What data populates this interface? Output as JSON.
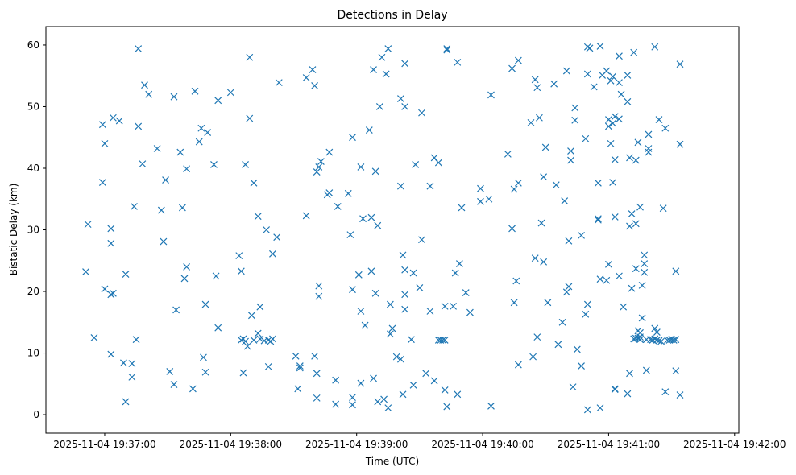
{
  "chart_data": {
    "type": "scatter",
    "title": "Detections in Delay",
    "xlabel": "Time (UTC)",
    "ylabel": "Bistatic Delay (km)",
    "marker": "x",
    "color": "#1f77b4",
    "x_unit": "seconds since 2025-11-04 19:37:00 UTC",
    "xlim": [
      -28,
      302
    ],
    "ylim": [
      -3,
      63
    ],
    "xticks": [
      {
        "value": 0,
        "label": "2025-11-04 19:37:00"
      },
      {
        "value": 60,
        "label": "2025-11-04 19:38:00"
      },
      {
        "value": 120,
        "label": "2025-11-04 19:39:00"
      },
      {
        "value": 180,
        "label": "2025-11-04 19:40:00"
      },
      {
        "value": 240,
        "label": "2025-11-04 19:41:00"
      },
      {
        "value": 300,
        "label": "2025-11-04 19:42:00"
      }
    ],
    "yticks": [
      {
        "value": 0,
        "label": "0"
      },
      {
        "value": 10,
        "label": "10"
      },
      {
        "value": 20,
        "label": "20"
      },
      {
        "value": 30,
        "label": "30"
      },
      {
        "value": 40,
        "label": "40"
      },
      {
        "value": 50,
        "label": "50"
      },
      {
        "value": 60,
        "label": "60"
      }
    ],
    "points": [
      [
        -9,
        23.2
      ],
      [
        -8,
        30.9
      ],
      [
        -5,
        12.5
      ],
      [
        -1,
        47.1
      ],
      [
        -1,
        37.7
      ],
      [
        0,
        44
      ],
      [
        0,
        20.4
      ],
      [
        3,
        19.5
      ],
      [
        3,
        30.2
      ],
      [
        3,
        27.8
      ],
      [
        3,
        9.8
      ],
      [
        4,
        19.7
      ],
      [
        4,
        48.2
      ],
      [
        7,
        47.7
      ],
      [
        9,
        8.4
      ],
      [
        10,
        2.1
      ],
      [
        10,
        22.8
      ],
      [
        13,
        8.3
      ],
      [
        13,
        6.1
      ],
      [
        14,
        33.8
      ],
      [
        15,
        12.2
      ],
      [
        16,
        46.8
      ],
      [
        16,
        59.4
      ],
      [
        18,
        40.7
      ],
      [
        19,
        53.5
      ],
      [
        21,
        52
      ],
      [
        25,
        43.2
      ],
      [
        27,
        33.2
      ],
      [
        28,
        28.1
      ],
      [
        29,
        38.1
      ],
      [
        31,
        7
      ],
      [
        33,
        51.6
      ],
      [
        33,
        4.9
      ],
      [
        34,
        17
      ],
      [
        36,
        42.6
      ],
      [
        37,
        33.6
      ],
      [
        38,
        22.1
      ],
      [
        39,
        39.9
      ],
      [
        39,
        24
      ],
      [
        42,
        4.2
      ],
      [
        43,
        52.5
      ],
      [
        45,
        44.3
      ],
      [
        46,
        46.5
      ],
      [
        47,
        9.3
      ],
      [
        48,
        6.9
      ],
      [
        48,
        17.9
      ],
      [
        49,
        45.8
      ],
      [
        52,
        40.6
      ],
      [
        53,
        22.5
      ],
      [
        54,
        51
      ],
      [
        54,
        14.1
      ],
      [
        60,
        52.3
      ],
      [
        64,
        25.8
      ],
      [
        65,
        12.1
      ],
      [
        65,
        23.3
      ],
      [
        66,
        12.3
      ],
      [
        66,
        6.8
      ],
      [
        67,
        40.6
      ],
      [
        67,
        11.9
      ],
      [
        68,
        11.1
      ],
      [
        69,
        58
      ],
      [
        69,
        48.1
      ],
      [
        70,
        16.1
      ],
      [
        71,
        12.1
      ],
      [
        71,
        37.6
      ],
      [
        73,
        32.2
      ],
      [
        73,
        13.2
      ],
      [
        74,
        17.5
      ],
      [
        74,
        12.3
      ],
      [
        76,
        12
      ],
      [
        77,
        30
      ],
      [
        78,
        12.1
      ],
      [
        78,
        7.8
      ],
      [
        79,
        11.9
      ],
      [
        80,
        26.1
      ],
      [
        80,
        12.3
      ],
      [
        82,
        28.8
      ],
      [
        83,
        53.9
      ],
      [
        91,
        9.5
      ],
      [
        92,
        4.2
      ],
      [
        93,
        7.9
      ],
      [
        93,
        7.6
      ],
      [
        96,
        54.7
      ],
      [
        96,
        32.3
      ],
      [
        99,
        56
      ],
      [
        100,
        9.5
      ],
      [
        100,
        53.4
      ],
      [
        101,
        6.7
      ],
      [
        101,
        39.4
      ],
      [
        101,
        2.7
      ],
      [
        102,
        20.9
      ],
      [
        102,
        40.2
      ],
      [
        102,
        19.2
      ],
      [
        103,
        41.1
      ],
      [
        106,
        35.7
      ],
      [
        107,
        42.6
      ],
      [
        107,
        36
      ],
      [
        110,
        5.6
      ],
      [
        110,
        1.7
      ],
      [
        111,
        33.8
      ],
      [
        116,
        35.9
      ],
      [
        117,
        29.2
      ],
      [
        118,
        2.8
      ],
      [
        118,
        1.6
      ],
      [
        118,
        20.3
      ],
      [
        118,
        45
      ],
      [
        121,
        22.7
      ],
      [
        122,
        5.1
      ],
      [
        122,
        16.8
      ],
      [
        122,
        40.2
      ],
      [
        123,
        31.8
      ],
      [
        124,
        14.5
      ],
      [
        126,
        46.2
      ],
      [
        127,
        32
      ],
      [
        127,
        23.3
      ],
      [
        128,
        5.9
      ],
      [
        128,
        56
      ],
      [
        129,
        19.7
      ],
      [
        129,
        39.5
      ],
      [
        130,
        30.7
      ],
      [
        130,
        2.1
      ],
      [
        131,
        50
      ],
      [
        132,
        58
      ],
      [
        133,
        2.5
      ],
      [
        134,
        55.3
      ],
      [
        135,
        59.4
      ],
      [
        135,
        1.1
      ],
      [
        136,
        17.9
      ],
      [
        136,
        13.1
      ],
      [
        137,
        14
      ],
      [
        139,
        9.4
      ],
      [
        141,
        9
      ],
      [
        141,
        37.1
      ],
      [
        141,
        51.3
      ],
      [
        142,
        25.9
      ],
      [
        142,
        3.3
      ],
      [
        143,
        23.5
      ],
      [
        143,
        17.1
      ],
      [
        143,
        50
      ],
      [
        143,
        57
      ],
      [
        143,
        19.5
      ],
      [
        146,
        12.2
      ],
      [
        147,
        4.8
      ],
      [
        147,
        23
      ],
      [
        148,
        40.6
      ],
      [
        150,
        20.6
      ],
      [
        151,
        49
      ],
      [
        151,
        28.4
      ],
      [
        153,
        6.7
      ],
      [
        155,
        37.1
      ],
      [
        155,
        16.8
      ],
      [
        157,
        41.7
      ],
      [
        157,
        5.5
      ],
      [
        159,
        12.1
      ],
      [
        159,
        40.9
      ],
      [
        160,
        12.1
      ],
      [
        161,
        12.1
      ],
      [
        162,
        17.6
      ],
      [
        162,
        4
      ],
      [
        162,
        12.1
      ],
      [
        163,
        1.3
      ],
      [
        163,
        59.4
      ],
      [
        163,
        59.2
      ],
      [
        166,
        17.6
      ],
      [
        167,
        23
      ],
      [
        168,
        3.3
      ],
      [
        168,
        57.2
      ],
      [
        169,
        24.5
      ],
      [
        170,
        33.6
      ],
      [
        172,
        19.8
      ],
      [
        174,
        16.6
      ],
      [
        179,
        36.7
      ],
      [
        179,
        34.6
      ],
      [
        183,
        35
      ],
      [
        184,
        51.9
      ],
      [
        184,
        1.4
      ],
      [
        192,
        42.3
      ],
      [
        194,
        56.2
      ],
      [
        194,
        30.2
      ],
      [
        195,
        36.6
      ],
      [
        195,
        18.2
      ],
      [
        196,
        21.7
      ],
      [
        197,
        57.5
      ],
      [
        197,
        8.1
      ],
      [
        197,
        37.6
      ],
      [
        203,
        47.4
      ],
      [
        204,
        9.4
      ],
      [
        205,
        54.4
      ],
      [
        205,
        25.4
      ],
      [
        206,
        53.1
      ],
      [
        206,
        12.6
      ],
      [
        207,
        48.2
      ],
      [
        208,
        31.1
      ],
      [
        209,
        38.6
      ],
      [
        209,
        24.8
      ],
      [
        210,
        43.4
      ],
      [
        211,
        18.2
      ],
      [
        214,
        53.7
      ],
      [
        215,
        37.3
      ],
      [
        216,
        11.4
      ],
      [
        218,
        15
      ],
      [
        219,
        34.7
      ],
      [
        220,
        19.9
      ],
      [
        220,
        55.8
      ],
      [
        221,
        20.8
      ],
      [
        221,
        28.2
      ],
      [
        222,
        42.8
      ],
      [
        222,
        41.3
      ],
      [
        223,
        4.5
      ],
      [
        224,
        47.8
      ],
      [
        224,
        49.8
      ],
      [
        225,
        10.6
      ],
      [
        227,
        29.1
      ],
      [
        227,
        7.9
      ],
      [
        229,
        16.3
      ],
      [
        229,
        44.8
      ],
      [
        230,
        59.7
      ],
      [
        230,
        55.3
      ],
      [
        230,
        17.9
      ],
      [
        230,
        0.8
      ],
      [
        231,
        59.5
      ],
      [
        233,
        53.2
      ],
      [
        235,
        37.6
      ],
      [
        235,
        31.8
      ],
      [
        235,
        31.6
      ],
      [
        236,
        22
      ],
      [
        236,
        1.1
      ],
      [
        236,
        59.8
      ],
      [
        237,
        55.1
      ],
      [
        239,
        55.8
      ],
      [
        239,
        21.8
      ],
      [
        240,
        47.9
      ],
      [
        240,
        46.8
      ],
      [
        240,
        24.4
      ],
      [
        241,
        54.2
      ],
      [
        241,
        44
      ],
      [
        242,
        37.7
      ],
      [
        242,
        54.9
      ],
      [
        242,
        47.3
      ],
      [
        243,
        4.2
      ],
      [
        243,
        4.1
      ],
      [
        243,
        41.4
      ],
      [
        243,
        48.4
      ],
      [
        243,
        32.1
      ],
      [
        245,
        48
      ],
      [
        245,
        22.5
      ],
      [
        245,
        58.2
      ],
      [
        245,
        53.9
      ],
      [
        246,
        52
      ],
      [
        247,
        17.5
      ],
      [
        249,
        3.4
      ],
      [
        249,
        55.1
      ],
      [
        249,
        50.8
      ],
      [
        250,
        41.7
      ],
      [
        250,
        6.7
      ],
      [
        250,
        30.6
      ],
      [
        251,
        32.6
      ],
      [
        251,
        20.5
      ],
      [
        252,
        58.8
      ],
      [
        252,
        12.3
      ],
      [
        253,
        12.4
      ],
      [
        253,
        23.7
      ],
      [
        253,
        31
      ],
      [
        253,
        41.3
      ],
      [
        254,
        12.4
      ],
      [
        254,
        13.6
      ],
      [
        254,
        44.2
      ],
      [
        255,
        12.2
      ],
      [
        255,
        33.7
      ],
      [
        255,
        12.6
      ],
      [
        255,
        13.3
      ],
      [
        256,
        21
      ],
      [
        256,
        15.7
      ],
      [
        257,
        23.1
      ],
      [
        257,
        24.5
      ],
      [
        257,
        25.9
      ],
      [
        258,
        7.2
      ],
      [
        258,
        12.2
      ],
      [
        259,
        42.6
      ],
      [
        259,
        45.5
      ],
      [
        259,
        43.2
      ],
      [
        260,
        12.2
      ],
      [
        261,
        12.1
      ],
      [
        262,
        12.3
      ],
      [
        262,
        14
      ],
      [
        262,
        59.7
      ],
      [
        263,
        13.4
      ],
      [
        263,
        12.1
      ],
      [
        264,
        12
      ],
      [
        264,
        47.9
      ],
      [
        265,
        11.9
      ],
      [
        266,
        33.5
      ],
      [
        267,
        3.7
      ],
      [
        267,
        46.5
      ],
      [
        268,
        12.1
      ],
      [
        269,
        12.1
      ],
      [
        270,
        12.2
      ],
      [
        271,
        12.1
      ],
      [
        272,
        7.1
      ],
      [
        272,
        12.2
      ],
      [
        272,
        23.3
      ],
      [
        274,
        56.9
      ],
      [
        274,
        43.9
      ],
      [
        274,
        3.2
      ]
    ]
  }
}
